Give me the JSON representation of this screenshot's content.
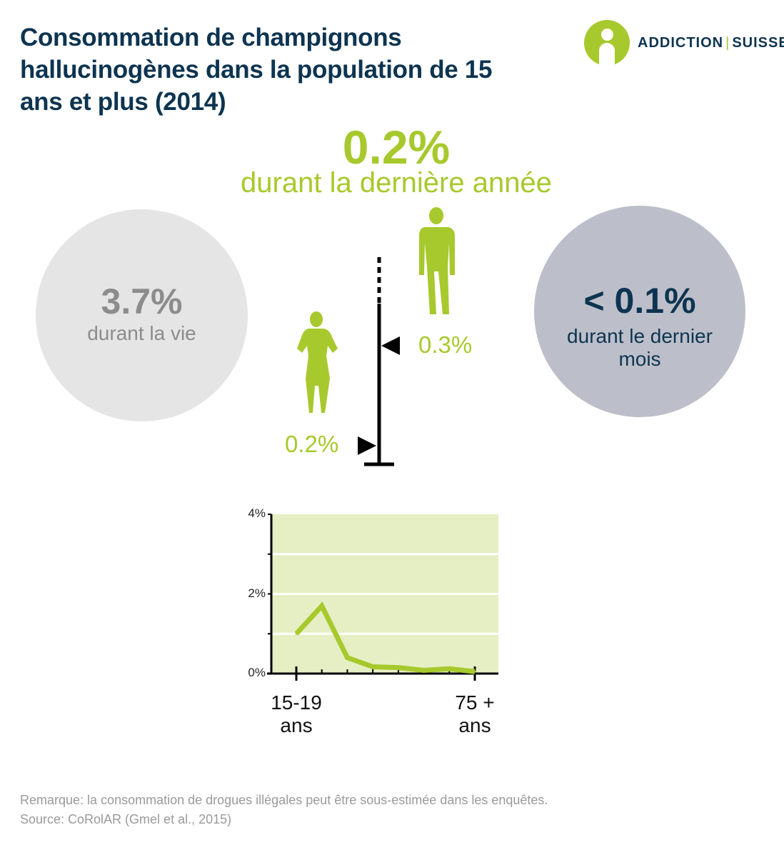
{
  "title": "Consommation de champignons hallucinogènes dans la population de 15 ans et plus (2014)",
  "logo": {
    "left": "ADDICTION",
    "separator": "|",
    "right": "SUISSE"
  },
  "last_year": {
    "value": "0.2%",
    "label": "durant la dernière année"
  },
  "lifetime": {
    "value": "3.7%",
    "label": "durant la vie"
  },
  "last_month": {
    "value": "< 0.1%",
    "label": "durant le dernier mois"
  },
  "by_gender": {
    "men": "0.3%",
    "women": "0.2%",
    "men_value": 0.3,
    "women_value": 0.2
  },
  "notes": {
    "remark": "Remarque: la consommation de drogues illégales peut être sous-estimée dans les enquêtes.",
    "source": "Source: CoRolAR (Gmel et al., 2015)"
  },
  "colors": {
    "accent": "#a7c92d",
    "navy": "#0d3450",
    "plot_bg": "#e6efc4",
    "life_circle": "#e5e5e5",
    "month_circle": "#bcbfca"
  },
  "chart_data": {
    "type": "line",
    "x_first_label": "15-19 ans",
    "x_last_label": "75 + ans",
    "x": [
      1,
      2,
      3,
      4,
      5,
      6,
      7,
      8
    ],
    "values": [
      1.0,
      1.7,
      0.4,
      0.17,
      0.15,
      0.08,
      0.12,
      0.05
    ],
    "y_tick_labels": [
      "0%",
      "2%",
      "4%"
    ],
    "ylim": [
      0,
      4
    ]
  }
}
